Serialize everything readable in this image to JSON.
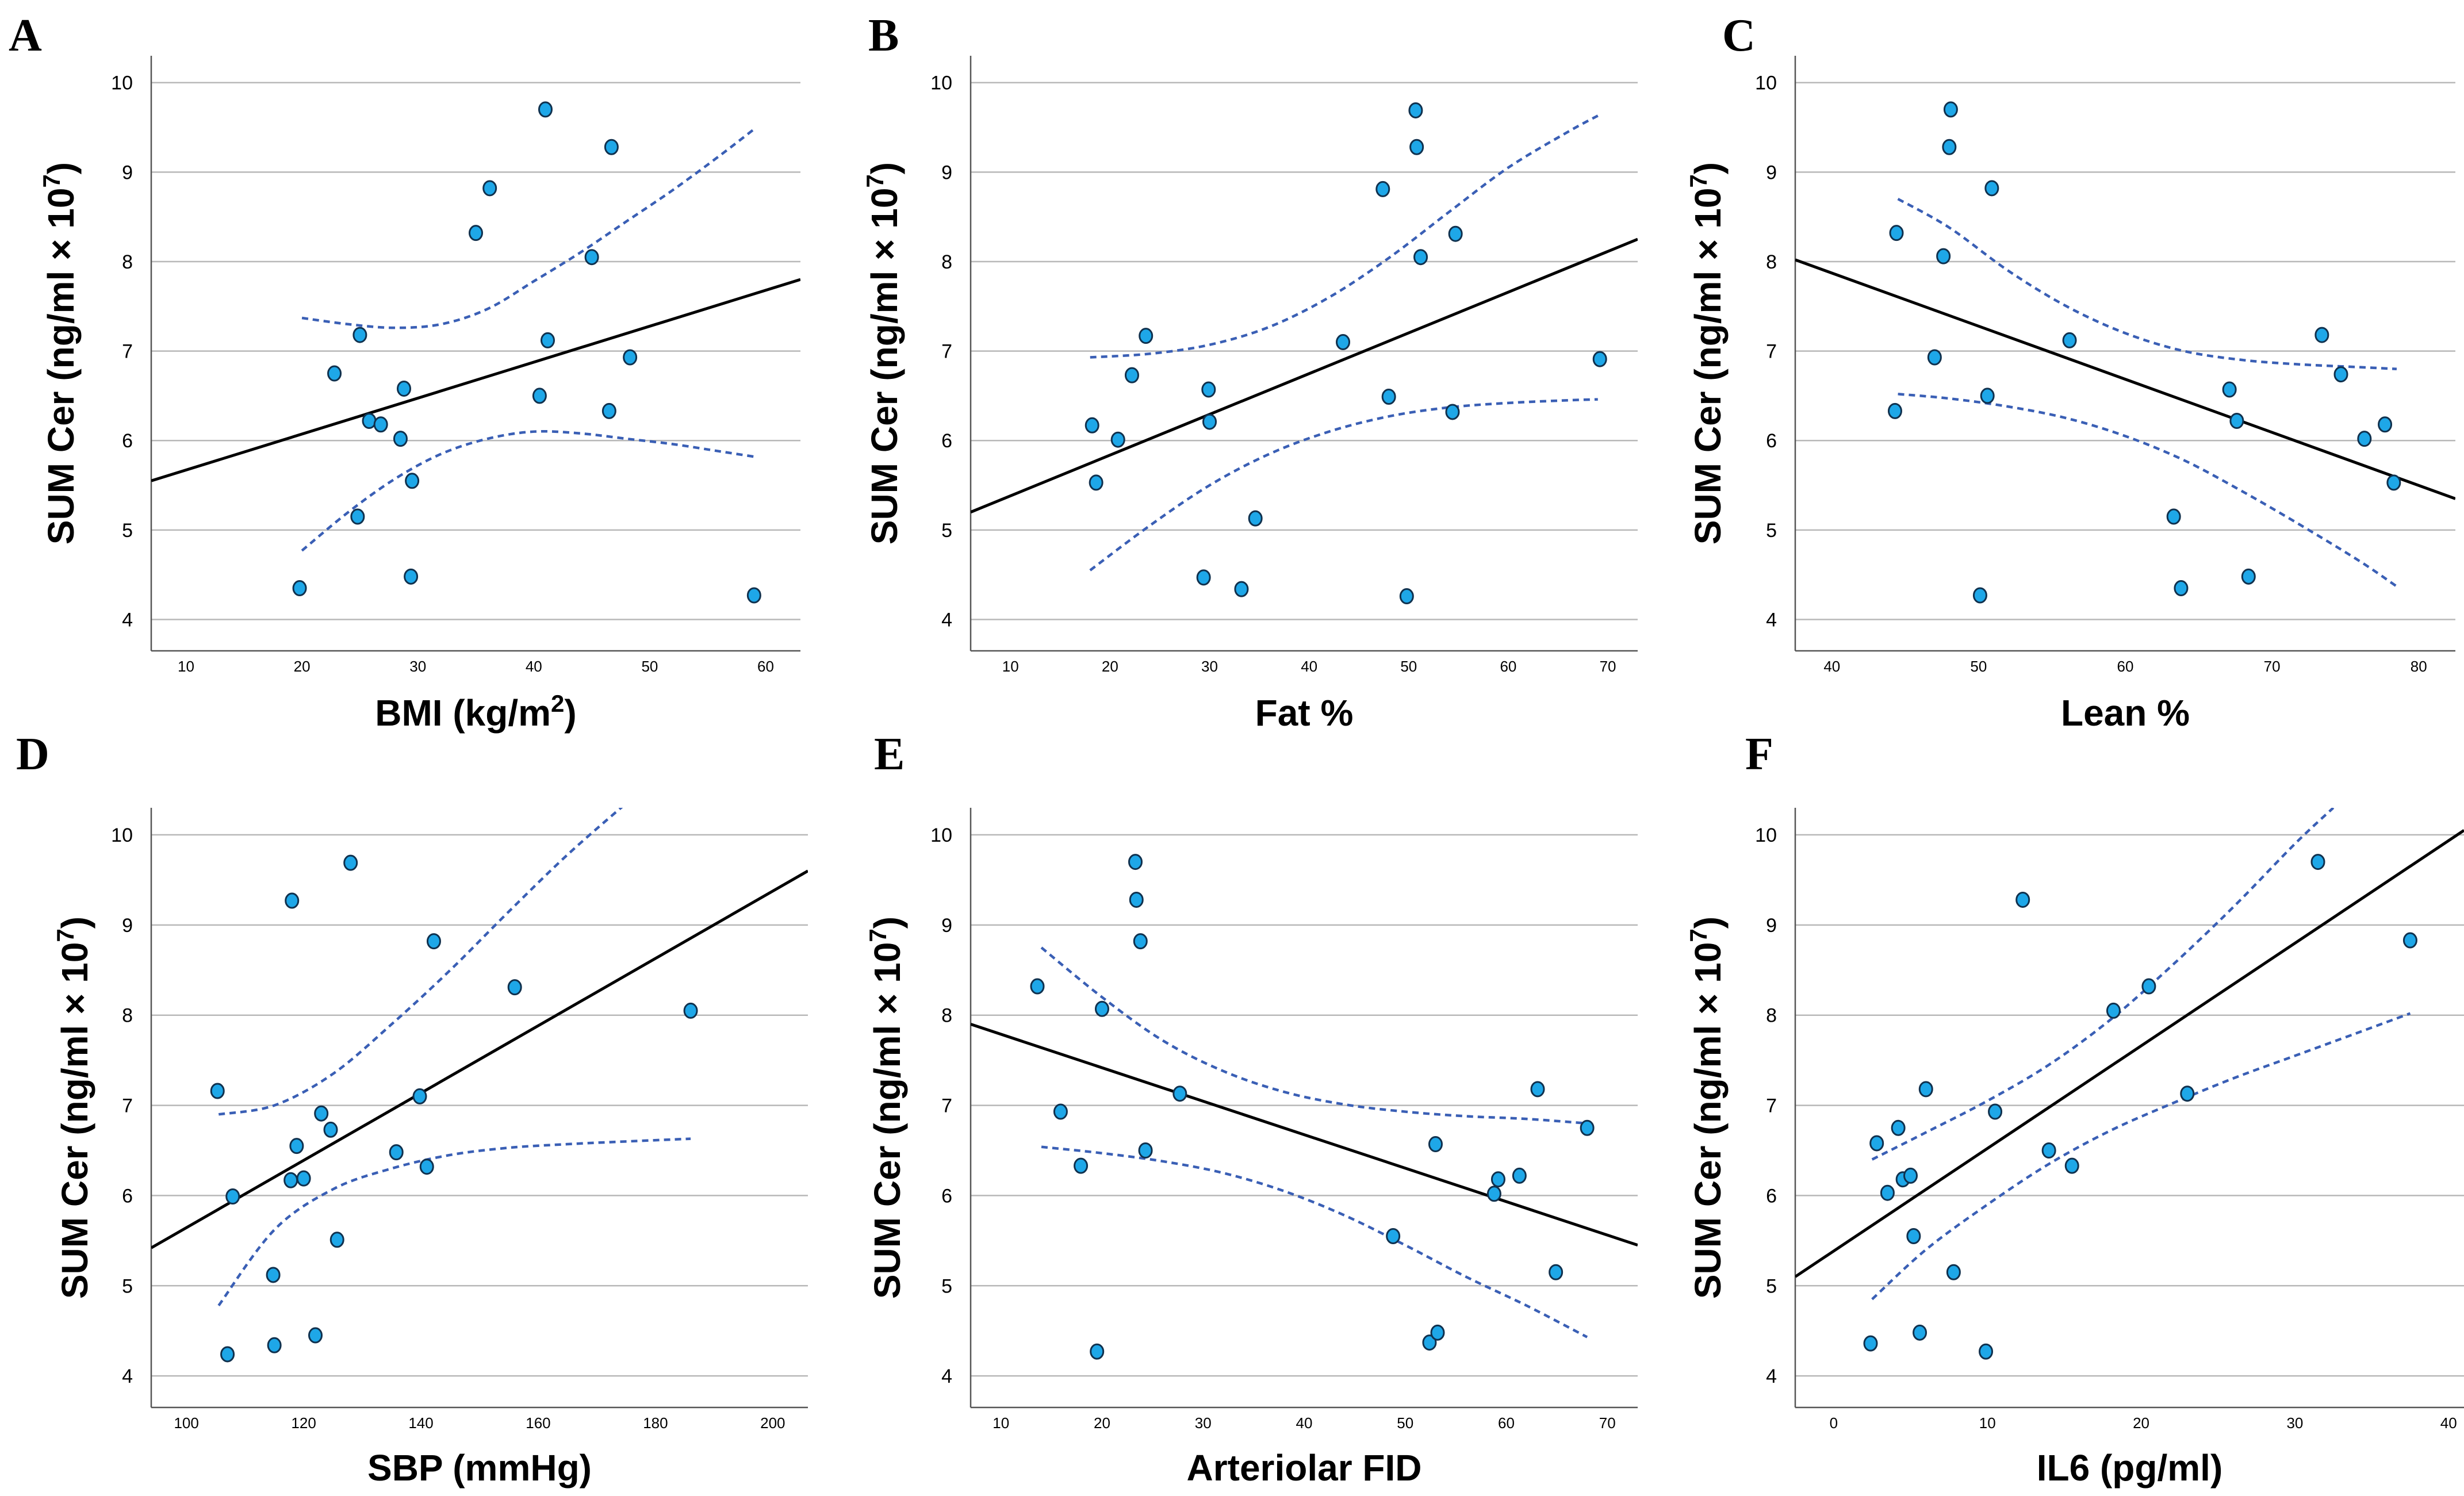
{
  "chart_data": [
    {
      "panel": "A",
      "type": "scatter",
      "ylabel": "SUM Cer (ng/ml × 10",
      "ylabel_sup": "7",
      "ylabel_end": ")",
      "xlabel": "BMI (kg/m",
      "xlabel_sup": "2",
      "xlabel_end": ")",
      "xlim": [
        7,
        63
      ],
      "ylim": [
        3.65,
        10.3
      ],
      "xticks": [
        "10",
        "20",
        "30",
        "40",
        "50",
        "60"
      ],
      "xtick_values": [
        10,
        20,
        30,
        40,
        50,
        60
      ],
      "yticks": [
        "4",
        "5",
        "6",
        "7",
        "8",
        "9",
        "10"
      ],
      "ytick_values": [
        4,
        5,
        6,
        7,
        8,
        9,
        10
      ],
      "x": [
        19.8,
        22.8,
        24.8,
        25.0,
        25.8,
        26.8,
        28.5,
        28.8,
        29.4,
        29.5,
        35.0,
        36.2,
        40.5,
        41.0,
        41.2,
        45.0,
        46.5,
        46.7,
        48.3,
        59.0
      ],
      "y": [
        4.35,
        6.75,
        5.15,
        7.18,
        6.22,
        6.18,
        6.02,
        6.58,
        4.48,
        5.55,
        8.32,
        8.82,
        6.5,
        9.7,
        7.12,
        8.05,
        6.33,
        9.28,
        6.93,
        4.27
      ],
      "fit": {
        "x": [
          7,
          63
        ],
        "y": [
          5.55,
          7.8
        ]
      },
      "ci_upper": {
        "x": [
          20,
          24,
          28,
          32,
          36,
          40,
          44,
          48,
          52,
          56,
          59
        ],
        "y": [
          7.37,
          7.3,
          7.26,
          7.3,
          7.47,
          7.78,
          8.1,
          8.45,
          8.8,
          9.18,
          9.48
        ]
      },
      "ci_lower": {
        "x": [
          20,
          24,
          28,
          32,
          36,
          40,
          44,
          48,
          52,
          56,
          59
        ],
        "y": [
          4.77,
          5.2,
          5.57,
          5.85,
          6.02,
          6.1,
          6.08,
          6.02,
          5.96,
          5.88,
          5.82
        ]
      }
    },
    {
      "panel": "B",
      "type": "scatter",
      "ylabel": "SUM Cer (ng/ml × 10",
      "ylabel_sup": "7",
      "ylabel_end": ")",
      "xlabel": "Fat %",
      "xlabel_sup": "",
      "xlabel_end": "",
      "xlim": [
        6,
        73
      ],
      "ylim": [
        3.65,
        10.3
      ],
      "xticks": [
        "10",
        "20",
        "30",
        "40",
        "50",
        "60",
        "70"
      ],
      "xtick_values": [
        10,
        20,
        30,
        40,
        50,
        60,
        70
      ],
      "yticks": [
        "4",
        "5",
        "6",
        "7",
        "8",
        "9",
        "10"
      ],
      "ytick_values": [
        4,
        5,
        6,
        7,
        8,
        9,
        10
      ],
      "x": [
        18.2,
        18.6,
        20.8,
        22.2,
        23.6,
        29.4,
        29.9,
        30.0,
        33.2,
        34.6,
        43.4,
        47.4,
        48.0,
        49.8,
        50.7,
        50.8,
        51.2,
        54.4,
        54.7,
        69.2
      ],
      "y": [
        6.17,
        5.53,
        6.01,
        6.73,
        7.17,
        4.47,
        6.57,
        6.21,
        4.34,
        5.13,
        7.1,
        8.81,
        6.49,
        4.26,
        9.69,
        9.28,
        8.05,
        6.32,
        8.31,
        6.91
      ],
      "fit": {
        "x": [
          6,
          73
        ],
        "y": [
          5.2,
          8.25
        ]
      },
      "ci_upper": {
        "x": [
          18,
          24,
          30,
          36,
          42,
          48,
          54,
          60,
          66,
          69
        ],
        "y": [
          6.93,
          6.97,
          7.07,
          7.27,
          7.6,
          8.04,
          8.55,
          9.05,
          9.45,
          9.63
        ]
      },
      "ci_lower": {
        "x": [
          18,
          24,
          30,
          36,
          42,
          48,
          54,
          60,
          66,
          69
        ],
        "y": [
          4.55,
          5.05,
          5.5,
          5.85,
          6.1,
          6.27,
          6.37,
          6.42,
          6.45,
          6.46
        ]
      }
    },
    {
      "panel": "C",
      "type": "scatter",
      "ylabel": "SUM Cer (ng/ml × 10",
      "ylabel_sup": "7",
      "ylabel_end": ")",
      "xlabel": "Lean %",
      "xlabel_sup": "",
      "xlabel_end": "",
      "xlim": [
        37.5,
        82.5
      ],
      "ylim": [
        3.65,
        10.3
      ],
      "xticks": [
        "40",
        "50",
        "60",
        "70",
        "80"
      ],
      "xtick_values": [
        40,
        50,
        60,
        70,
        80
      ],
      "yticks": [
        "4",
        "5",
        "6",
        "7",
        "8",
        "9",
        "10"
      ],
      "ytick_values": [
        4,
        5,
        6,
        7,
        8,
        9,
        10
      ],
      "x": [
        44.3,
        44.4,
        47.0,
        47.6,
        48.0,
        48.1,
        50.1,
        50.6,
        50.9,
        56.2,
        63.3,
        63.8,
        67.1,
        67.6,
        68.4,
        73.4,
        74.7,
        76.3,
        77.7,
        78.3
      ],
      "y": [
        6.33,
        8.32,
        6.93,
        8.06,
        9.28,
        9.7,
        4.27,
        6.5,
        8.82,
        7.12,
        5.15,
        4.35,
        6.57,
        6.22,
        4.48,
        7.18,
        6.74,
        6.02,
        6.18,
        5.53
      ],
      "fit": {
        "x": [
          37.5,
          82.5
        ],
        "y": [
          8.02,
          5.35
        ]
      },
      "ci_upper": {
        "x": [
          44.5,
          48,
          52,
          56,
          60,
          64,
          68,
          72,
          76,
          78.5
        ],
        "y": [
          8.7,
          8.38,
          7.9,
          7.5,
          7.2,
          7.0,
          6.9,
          6.85,
          6.82,
          6.8
        ]
      },
      "ci_lower": {
        "x": [
          44.5,
          48,
          52,
          56,
          60,
          64,
          68,
          72,
          76,
          78.5
        ],
        "y": [
          6.52,
          6.47,
          6.38,
          6.25,
          6.05,
          5.78,
          5.43,
          5.05,
          4.65,
          4.37
        ]
      }
    },
    {
      "panel": "D",
      "type": "scatter",
      "ylabel": "SUM Cer (ng/ml × 10",
      "ylabel_sup": "7",
      "ylabel_end": ")",
      "xlabel": "SBP (mmHg)",
      "xlabel_sup": "",
      "xlabel_end": "",
      "xlim": [
        94,
        206
      ],
      "ylim": [
        3.65,
        10.3
      ],
      "xticks": [
        "100",
        "120",
        "140",
        "160",
        "180",
        "200"
      ],
      "xtick_values": [
        100,
        120,
        140,
        160,
        180,
        200
      ],
      "yticks": [
        "4",
        "5",
        "6",
        "7",
        "8",
        "9",
        "10"
      ],
      "ytick_values": [
        4,
        5,
        6,
        7,
        8,
        9,
        10
      ],
      "x": [
        105.3,
        107.0,
        107.9,
        114.8,
        115.0,
        117.8,
        118.0,
        118.8,
        120.0,
        122.0,
        123.0,
        124.6,
        125.7,
        128.0,
        135.8,
        139.8,
        141.0,
        142.2,
        156.0,
        186.0
      ],
      "y": [
        7.16,
        4.24,
        5.99,
        5.12,
        4.34,
        6.17,
        9.27,
        6.55,
        6.19,
        4.45,
        6.91,
        6.73,
        5.51,
        9.69,
        6.48,
        7.1,
        6.32,
        8.82,
        8.31,
        8.05
      ],
      "fit": {
        "x": [
          94,
          206
        ],
        "y": [
          5.42,
          9.6
        ]
      },
      "ci_upper": {
        "x": [
          105.5,
          115,
          125,
          135,
          145,
          155,
          165,
          175
        ],
        "y": [
          6.9,
          7.0,
          7.35,
          7.9,
          8.5,
          9.15,
          9.78,
          10.35
        ]
      },
      "ci_lower": {
        "x": [
          105.5,
          115,
          125,
          135,
          145,
          155,
          165,
          175,
          186
        ],
        "y": [
          4.78,
          5.62,
          6.07,
          6.3,
          6.45,
          6.53,
          6.57,
          6.6,
          6.63
        ]
      }
    },
    {
      "panel": "E",
      "type": "scatter",
      "ylabel": "SUM Cer (ng/ml × 10",
      "ylabel_sup": "7",
      "ylabel_end": ")",
      "xlabel": "Arteriolar FID",
      "xlabel_sup": "",
      "xlabel_end": "",
      "xlim": [
        7,
        73
      ],
      "ylim": [
        3.65,
        10.3
      ],
      "xticks": [
        "10",
        "20",
        "30",
        "40",
        "50",
        "60",
        "70"
      ],
      "xtick_values": [
        10,
        20,
        30,
        40,
        50,
        60,
        70
      ],
      "yticks": [
        "4",
        "5",
        "6",
        "7",
        "8",
        "9",
        "10"
      ],
      "ytick_values": [
        4,
        5,
        6,
        7,
        8,
        9,
        10
      ],
      "x": [
        13.6,
        15.9,
        17.9,
        19.5,
        20.0,
        23.3,
        23.4,
        23.8,
        24.3,
        27.7,
        48.8,
        52.4,
        53.0,
        53.2,
        58.8,
        59.2,
        61.3,
        63.1,
        64.9,
        68.0
      ],
      "y": [
        8.32,
        6.93,
        6.33,
        4.27,
        8.07,
        9.7,
        9.28,
        8.82,
        6.5,
        7.13,
        5.55,
        4.37,
        6.57,
        4.48,
        6.02,
        6.18,
        6.22,
        7.18,
        5.15,
        6.75
      ],
      "fit": {
        "x": [
          7,
          73
        ],
        "y": [
          7.9,
          5.45
        ]
      },
      "ci_upper": {
        "x": [
          14,
          20,
          26,
          32,
          38,
          44,
          50,
          56,
          62,
          68
        ],
        "y": [
          8.75,
          8.2,
          7.72,
          7.38,
          7.15,
          7.01,
          6.93,
          6.88,
          6.85,
          6.8
        ]
      },
      "ci_lower": {
        "x": [
          14,
          20,
          26,
          32,
          38,
          44,
          50,
          56,
          62,
          68
        ],
        "y": [
          6.54,
          6.47,
          6.38,
          6.25,
          6.05,
          5.78,
          5.45,
          5.1,
          4.78,
          4.43
        ]
      }
    },
    {
      "panel": "F",
      "type": "scatter",
      "ylabel": "SUM Cer (ng/ml × 10",
      "ylabel_sup": "7",
      "ylabel_end": ")",
      "xlabel": "IL6 (pg/ml)",
      "xlabel_sup": "",
      "xlabel_end": "",
      "xlim": [
        -2.5,
        41
      ],
      "ylim": [
        3.65,
        10.3
      ],
      "xticks": [
        "0",
        "10",
        "20",
        "30",
        "40"
      ],
      "xtick_values": [
        0,
        10,
        20,
        30,
        40
      ],
      "yticks": [
        "4",
        "5",
        "6",
        "7",
        "8",
        "9",
        "10"
      ],
      "ytick_values": [
        4,
        5,
        6,
        7,
        8,
        9,
        10
      ],
      "x": [
        2.4,
        2.8,
        3.5,
        4.2,
        4.5,
        5.0,
        5.2,
        5.6,
        6.0,
        7.8,
        9.9,
        10.5,
        12.3,
        14.0,
        15.5,
        18.2,
        20.5,
        23.0,
        31.5,
        37.5
      ],
      "y": [
        4.36,
        6.58,
        6.03,
        6.75,
        6.18,
        6.22,
        5.55,
        4.48,
        7.18,
        5.15,
        4.27,
        6.93,
        9.28,
        6.5,
        6.33,
        8.05,
        8.32,
        7.13,
        9.7,
        8.83
      ],
      "fit": {
        "x": [
          -2.5,
          41
        ],
        "y": [
          5.1,
          10.05
        ]
      },
      "ci_upper": {
        "x": [
          2.5,
          6,
          10,
          14,
          18,
          22,
          26,
          30,
          32.5
        ],
        "y": [
          6.4,
          6.7,
          7.05,
          7.45,
          7.95,
          8.55,
          9.2,
          9.9,
          10.3
        ]
      },
      "ci_lower": {
        "x": [
          2.5,
          6,
          10,
          14,
          18,
          22,
          26,
          30,
          34,
          37.5
        ],
        "y": [
          4.85,
          5.4,
          5.9,
          6.35,
          6.72,
          7.02,
          7.3,
          7.55,
          7.8,
          8.02
        ]
      }
    }
  ]
}
